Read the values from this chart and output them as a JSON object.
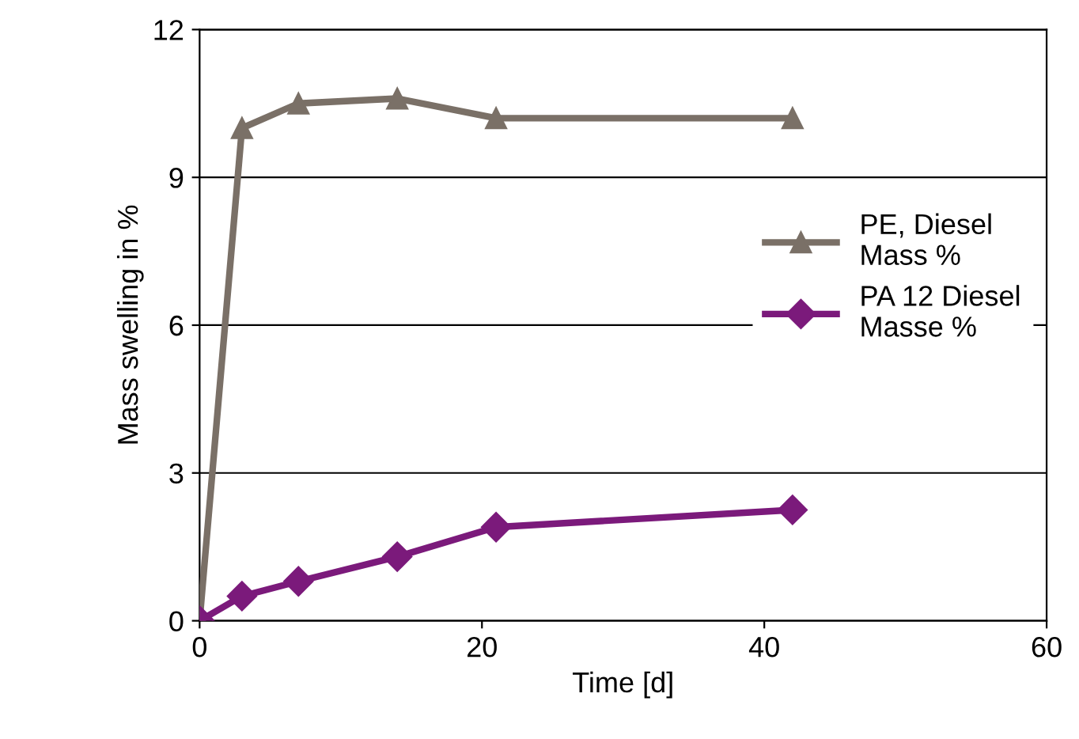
{
  "chart_data": {
    "type": "line",
    "xlabel": "Time [d]",
    "ylabel": "Mass swelling in %",
    "xlim": [
      0,
      60
    ],
    "xticks": [
      0,
      20,
      40,
      60
    ],
    "ylim": [
      0,
      12
    ],
    "yticks": [
      0,
      3,
      6,
      9,
      12
    ],
    "grid": "y",
    "legend": "right",
    "series": [
      {
        "name": "PE, Diesel\nMass %",
        "color": "#7a7067",
        "marker": "triangle",
        "x": [
          0,
          3,
          7,
          14,
          21,
          42
        ],
        "values": [
          0,
          10.0,
          10.5,
          10.6,
          10.2,
          10.2
        ]
      },
      {
        "name": "PA 12 Diesel\nMasse %",
        "color": "#7b1a7b",
        "marker": "diamond",
        "x": [
          0,
          3,
          7,
          14,
          21,
          42
        ],
        "values": [
          0,
          0.5,
          0.8,
          1.3,
          1.9,
          2.25
        ]
      }
    ]
  }
}
